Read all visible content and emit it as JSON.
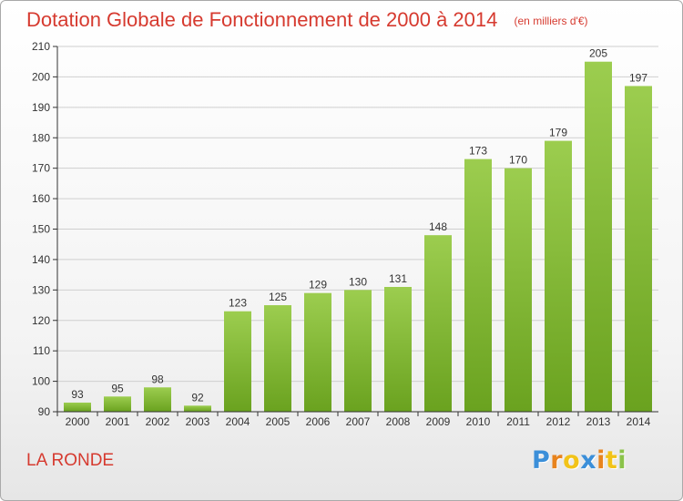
{
  "chart_data": {
    "type": "bar",
    "title": "Dotation Globale de Fonctionnement de 2000 à 2014",
    "subtitle": "(en milliers d'€)",
    "categories": [
      "2000",
      "2001",
      "2002",
      "2003",
      "2004",
      "2005",
      "2006",
      "2007",
      "2008",
      "2009",
      "2010",
      "2011",
      "2012",
      "2013",
      "2014"
    ],
    "values": [
      93,
      95,
      98,
      92,
      123,
      125,
      129,
      130,
      131,
      148,
      173,
      170,
      179,
      205,
      197
    ],
    "ylim": [
      90,
      210
    ],
    "yticks": [
      90,
      100,
      110,
      120,
      130,
      140,
      150,
      160,
      170,
      180,
      190,
      200,
      210
    ],
    "grid": true,
    "bar_color_top": "#9ccd4f",
    "bar_color_bottom": "#6aa21f",
    "grid_color": "#cfcfcf"
  },
  "footer": {
    "commune": "LA RONDE",
    "logo_letters": [
      "P",
      "r",
      "o",
      "x",
      "i",
      "t",
      "i"
    ],
    "logo_colors": [
      "#3b8fd9",
      "#e8841e",
      "#f2c318",
      "#3b8fd9",
      "#e8841e",
      "#f2c318",
      "#8bc34a"
    ]
  },
  "colors": {
    "title": "#d63a2f",
    "axis": "#333333"
  }
}
